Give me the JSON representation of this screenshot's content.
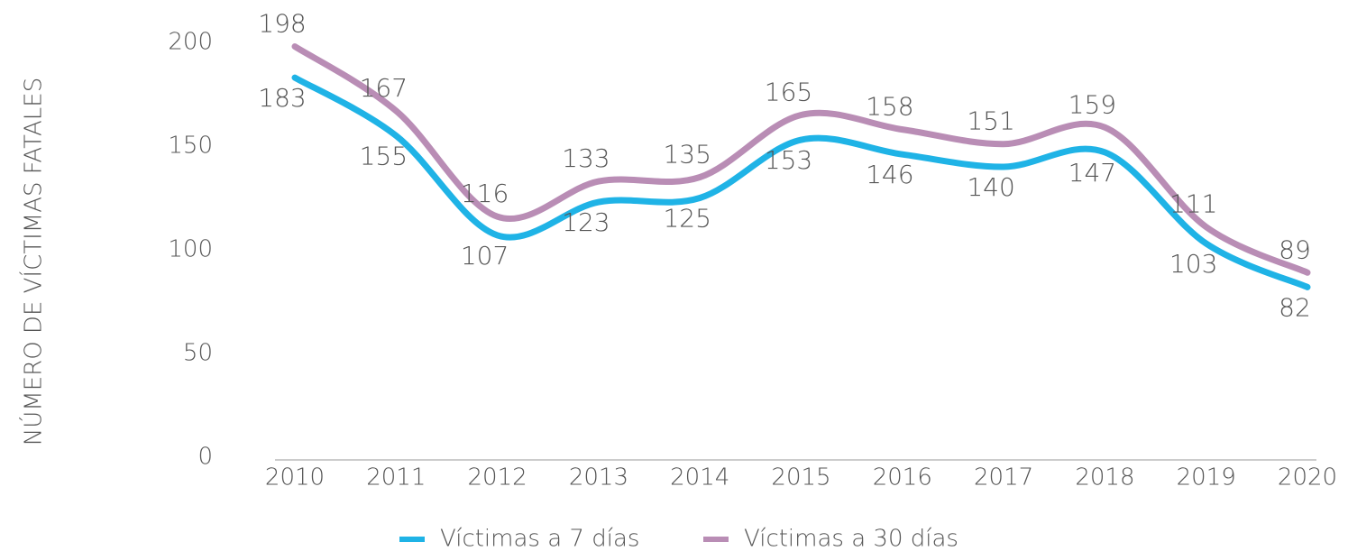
{
  "chart_data": {
    "type": "line",
    "y_label": "NÚMERO DE VÍCTIMAS FATALES",
    "categories": [
      "2010",
      "2011",
      "2012",
      "2013",
      "2014",
      "2015",
      "2016",
      "2017",
      "2018",
      "2019",
      "2020"
    ],
    "series": [
      {
        "name": "Víctimas a 7 días",
        "color": "#1fb3e6",
        "values": [
          183,
          155,
          107,
          123,
          125,
          153,
          146,
          140,
          147,
          103,
          82
        ]
      },
      {
        "name": "Víctimas a 30 días",
        "color": "#b98db5",
        "values": [
          198,
          167,
          116,
          133,
          135,
          165,
          158,
          151,
          159,
          111,
          89
        ]
      }
    ],
    "ylim": [
      0,
      200
    ],
    "yticks": [
      0,
      50,
      100,
      150,
      200
    ],
    "smooth": true,
    "legend": "bottom"
  }
}
